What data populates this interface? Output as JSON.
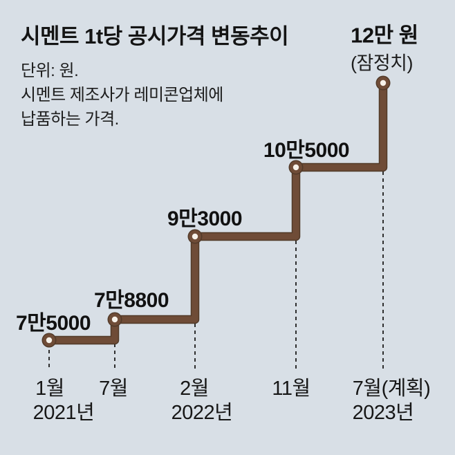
{
  "title": "시멘트 1t당 공시가격 변동추이",
  "subtitle_lines": [
    "단위: 원.",
    "시멘트 제조사가 레미콘업체에",
    "납품하는 가격."
  ],
  "colors": {
    "background": "#d8dfe6",
    "line_main": "#6f4c37",
    "line_edge": "#513a29",
    "dot_center": "#f7f2ea",
    "dashed_line": "#2e2e2e",
    "text": "#141414"
  },
  "chart_data": {
    "type": "line",
    "subtype": "step",
    "title": "시멘트 1t당 공시가격 변동추이",
    "unit": "원",
    "x_axis": [
      "2021년 1월",
      "2021년 7월",
      "2022년 2월",
      "2022년 11월",
      "2023년 7월(계획)"
    ],
    "values": [
      75000,
      78800,
      93000,
      105000,
      120000
    ],
    "ylim": [
      70000,
      125000
    ],
    "grid": "off",
    "points": [
      {
        "month": "1월",
        "year": "2021년",
        "value": 75000,
        "value_label": "7만5000"
      },
      {
        "month": "7월",
        "year": "",
        "value": 78800,
        "value_label": "7만8800"
      },
      {
        "month": "2월",
        "year": "2022년",
        "value": 93000,
        "value_label": "9만3000"
      },
      {
        "month": "11월",
        "year": "",
        "value": 105000,
        "value_label": "10만5000"
      },
      {
        "month": "7월(계획)",
        "year": "2023년",
        "value": 120000,
        "value_label": "12만 원",
        "annotation": "(잠정치)"
      }
    ]
  }
}
